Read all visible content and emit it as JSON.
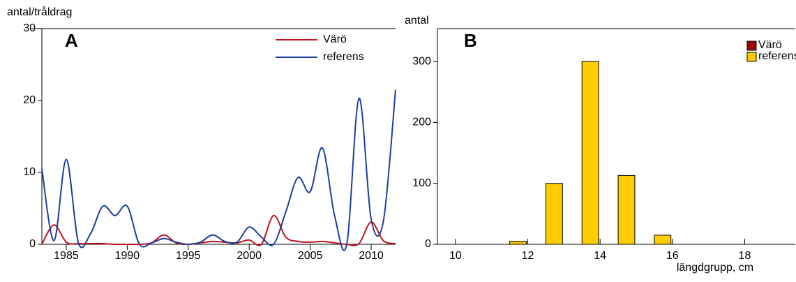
{
  "chart_data": [
    {
      "type": "line",
      "annotation": "A",
      "ylabel": "antal/tråldrag",
      "x": [
        1983,
        1984,
        1985,
        1986,
        1987,
        1988,
        1989,
        1990,
        1991,
        1992,
        1993,
        1994,
        1995,
        1996,
        1997,
        1998,
        1999,
        2000,
        2001,
        2002,
        2003,
        2004,
        2005,
        2006,
        2007,
        2008,
        2009,
        2010,
        2011,
        2012
      ],
      "series": [
        {
          "name": "Värö",
          "color": "#c0141c",
          "values": [
            0,
            2.7,
            0.3,
            0.1,
            0.1,
            0.1,
            0,
            0,
            0,
            0.2,
            1.3,
            0.2,
            0,
            0.2,
            0.4,
            0.3,
            0.2,
            0.6,
            0,
            4,
            1,
            0.4,
            0.3,
            0.4,
            0.2,
            0,
            0.1,
            3.1,
            0.5,
            0.1
          ]
        },
        {
          "name": "referens",
          "color": "#1f3e9c",
          "values": [
            10.5,
            0.5,
            11.8,
            0.2,
            1.5,
            5.3,
            4,
            5.3,
            0,
            0.2,
            0.8,
            0.3,
            0,
            0.3,
            1.3,
            0.4,
            0.3,
            2.4,
            1,
            0,
            4.5,
            9.3,
            7.3,
            13.4,
            4,
            0,
            20.3,
            3.5,
            3.2,
            21.5
          ]
        }
      ],
      "xlim": [
        1983,
        2012
      ],
      "xticks": [
        1985,
        1990,
        1995,
        2000,
        2005,
        2010
      ],
      "ylim": [
        0,
        30
      ],
      "yticks": [
        0,
        10,
        20,
        30
      ],
      "legend": "top-right"
    },
    {
      "type": "bar",
      "annotation": "B",
      "ylabel": "antal",
      "xlabel": "längdgrupp, cm",
      "x": [
        11,
        12,
        13,
        14,
        15
      ],
      "series": [
        {
          "name": "Värö",
          "color": "#9b0a0a",
          "values": [
            0,
            0,
            0,
            0,
            0
          ]
        },
        {
          "name": "referens",
          "color": "#ffcc00",
          "values": [
            5,
            100,
            300,
            113,
            15
          ]
        }
      ],
      "xlim": [
        9.5,
        19.4
      ],
      "xticks": [
        10,
        12,
        14,
        16,
        18
      ],
      "ylim": [
        0,
        354
      ],
      "yticks": [
        0,
        100,
        200,
        300
      ],
      "legend": "top-right"
    }
  ]
}
